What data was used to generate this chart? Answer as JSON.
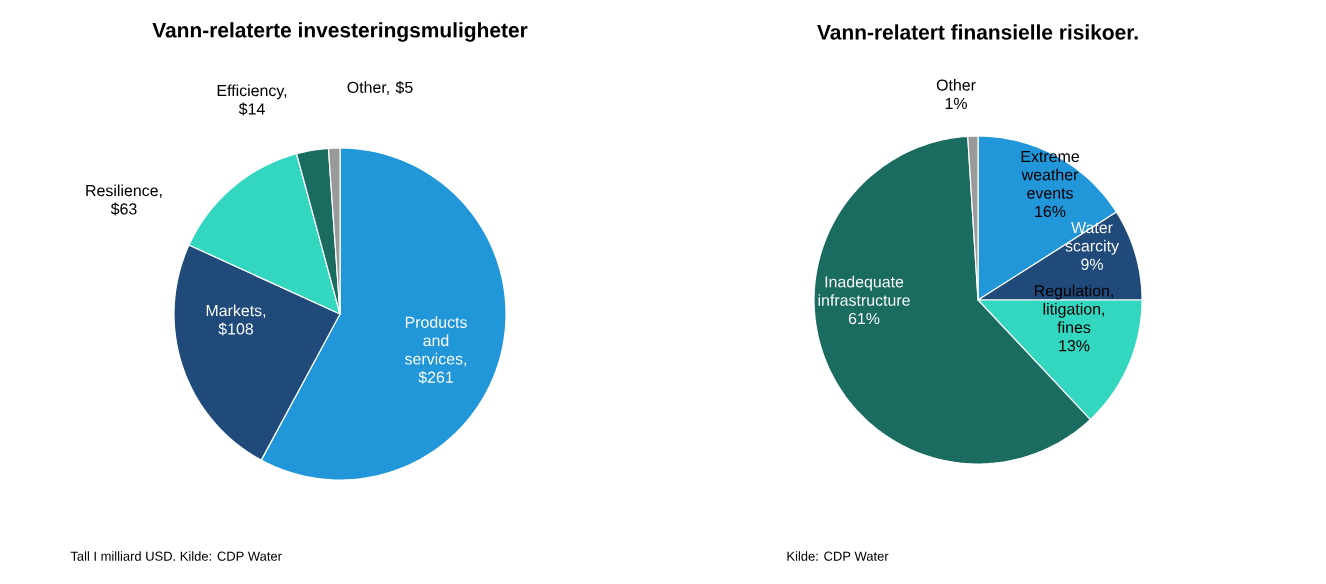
{
  "chart_data": [
    {
      "type": "pie",
      "title": "Vann-relaterte investeringsmuligheter",
      "categories": [
        "Products and services, $261",
        "Markets, $108",
        "Resilience, $63",
        "Efficiency, $14",
        "Other, $5"
      ],
      "values": [
        261,
        108,
        63,
        14,
        5
      ],
      "colors": [
        "#2196d8",
        "#204a7a",
        "#33d6bf",
        "#1a6b60",
        "#9a9a9a"
      ],
      "annotations": [
        "Tall I milliard USD. Kilde: CDP Water"
      ]
    },
    {
      "type": "pie",
      "title": "Vann-relatert finansielle risikoer.",
      "categories": [
        "Extreme weather events",
        "Water scarcity",
        "Regulation, litigation, fines",
        "Inadequate infrastructure",
        "Other"
      ],
      "values": [
        16,
        9,
        13,
        61,
        1
      ],
      "value_labels": [
        "16%",
        "9%",
        "13%",
        "61%",
        "1%"
      ],
      "colors": [
        "#2196d8",
        "#204a7a",
        "#33d6bf",
        "#1a6b60",
        "#9a9a9a"
      ],
      "annotations": [
        "Kilde: CDP Water"
      ]
    }
  ]
}
